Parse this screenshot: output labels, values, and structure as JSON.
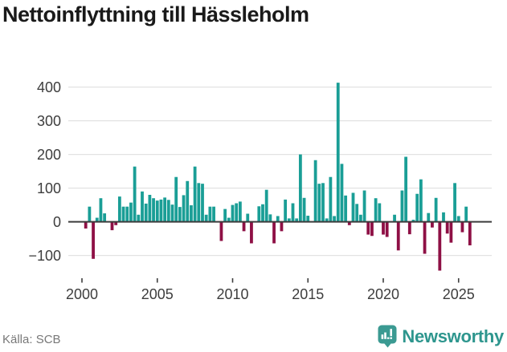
{
  "title": "Nettoinflyttning till Hässleholm",
  "footer": {
    "source": "Källa: SCB"
  },
  "brand": {
    "name": "Newsworthy",
    "logo_icon": "bar-chart-exclamation-badge"
  },
  "colors": {
    "positive": "#1a9e96",
    "negative": "#8e1045",
    "grid": "#e2e2e2",
    "zero_line": "#3c3c3c",
    "axis_text": "#3d3d3d",
    "title_text": "#1a1a1a",
    "source_text": "#787878",
    "brand_teal": "#3b9a92"
  },
  "chart_data": {
    "type": "bar",
    "title": "Nettoinflyttning till Hässleholm",
    "xlabel": "",
    "ylabel": "",
    "grid": true,
    "legend": false,
    "ylim": [
      -150,
      450
    ],
    "y_ticks": [
      400,
      300,
      200,
      100,
      0,
      -100
    ],
    "y_tick_labels": [
      "400",
      "300",
      "200",
      "100",
      "0",
      "−100"
    ],
    "x_tick_years": [
      2000,
      2005,
      2010,
      2015,
      2020,
      2025
    ],
    "x_tick_labels": [
      "2000",
      "2005",
      "2010",
      "2015",
      "2020",
      "2025"
    ],
    "quarters": [
      "2000 Q1",
      "2000 Q2",
      "2000 Q3",
      "2000 Q4",
      "2001 Q1",
      "2001 Q2",
      "2001 Q3",
      "2001 Q4",
      "2002 Q1",
      "2002 Q2",
      "2002 Q3",
      "2002 Q4",
      "2003 Q1",
      "2003 Q2",
      "2003 Q3",
      "2003 Q4",
      "2004 Q1",
      "2004 Q2",
      "2004 Q3",
      "2004 Q4",
      "2005 Q1",
      "2005 Q2",
      "2005 Q3",
      "2005 Q4",
      "2006 Q1",
      "2006 Q2",
      "2006 Q3",
      "2006 Q4",
      "2007 Q1",
      "2007 Q2",
      "2007 Q3",
      "2007 Q4",
      "2008 Q1",
      "2008 Q2",
      "2008 Q3",
      "2008 Q4",
      "2009 Q1",
      "2009 Q2",
      "2009 Q3",
      "2009 Q4",
      "2010 Q1",
      "2010 Q2",
      "2010 Q3",
      "2010 Q4",
      "2011 Q1",
      "2011 Q2",
      "2011 Q3",
      "2011 Q4",
      "2012 Q1",
      "2012 Q2",
      "2012 Q3",
      "2012 Q4",
      "2013 Q1",
      "2013 Q2",
      "2013 Q3",
      "2013 Q4",
      "2014 Q1",
      "2014 Q2",
      "2014 Q3",
      "2014 Q4",
      "2015 Q1",
      "2015 Q2",
      "2015 Q3",
      "2015 Q4",
      "2016 Q1",
      "2016 Q2",
      "2016 Q3",
      "2016 Q4",
      "2017 Q1",
      "2017 Q2",
      "2017 Q3",
      "2017 Q4",
      "2018 Q1",
      "2018 Q2",
      "2018 Q3",
      "2018 Q4",
      "2019 Q1",
      "2019 Q2",
      "2019 Q3",
      "2019 Q4",
      "2020 Q1",
      "2020 Q2",
      "2020 Q3",
      "2020 Q4",
      "2021 Q1",
      "2021 Q2",
      "2021 Q3",
      "2021 Q4",
      "2022 Q1",
      "2022 Q2",
      "2022 Q3",
      "2022 Q4",
      "2023 Q1",
      "2023 Q2",
      "2023 Q3",
      "2023 Q4",
      "2024 Q1",
      "2024 Q2",
      "2024 Q3",
      "2024 Q4",
      "2025 Q1",
      "2025 Q2",
      "2025 Q3",
      "2025 Q4"
    ],
    "values": [
      0,
      -20,
      45,
      -110,
      12,
      70,
      25,
      0,
      -25,
      -10,
      75,
      45,
      45,
      57,
      164,
      21,
      90,
      54,
      80,
      70,
      63,
      66,
      72,
      65,
      51,
      133,
      44,
      79,
      121,
      49,
      164,
      115,
      113,
      21,
      45,
      45,
      0,
      -57,
      38,
      12,
      50,
      55,
      60,
      -28,
      24,
      -64,
      0,
      46,
      52,
      95,
      22,
      -64,
      17,
      -28,
      66,
      10,
      55,
      10,
      200,
      71,
      18,
      0,
      183,
      113,
      115,
      10,
      133,
      17,
      413,
      172,
      78,
      -10,
      86,
      53,
      21,
      93,
      -38,
      -42,
      70,
      55,
      -38,
      -45,
      0,
      21,
      -85,
      93,
      193,
      -37,
      6,
      83,
      126,
      -95,
      26,
      -17,
      71,
      -145,
      28,
      -35,
      -62,
      115,
      17,
      -31,
      45,
      -70
    ]
  }
}
